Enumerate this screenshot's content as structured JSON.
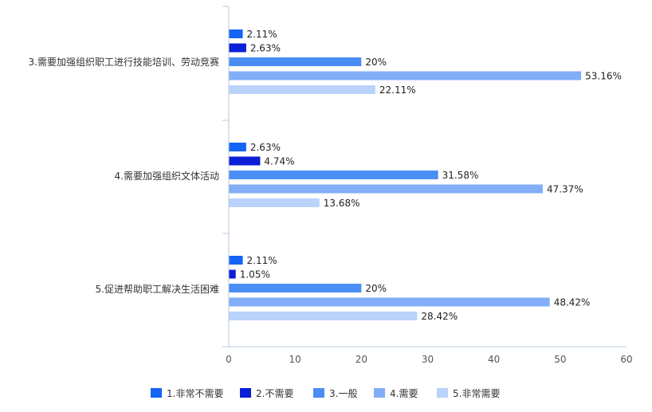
{
  "chart_data": {
    "type": "bar",
    "orientation": "horizontal",
    "title": "",
    "xlabel": "",
    "ylabel": "",
    "xlim": [
      0,
      60
    ],
    "xticks": [
      "0",
      "10",
      "20",
      "30",
      "40",
      "50",
      "60"
    ],
    "grid": false,
    "legend_position": "bottom",
    "categories": [
      "3.需要加强组织职工进行技能培训、劳动竞赛",
      "4.需要加强组织文体活动",
      "5.促进帮助职工解决生活困难"
    ],
    "series": [
      {
        "name": "1.非常不需要",
        "color": "#1464f6",
        "values": [
          2.11,
          2.63,
          2.11
        ],
        "labels": [
          "2.11%",
          "2.63%",
          "2.11%"
        ]
      },
      {
        "name": "2.不需要",
        "color": "#0a1fd6",
        "values": [
          2.63,
          4.74,
          1.05
        ],
        "labels": [
          "2.63%",
          "4.74%",
          "1.05%"
        ]
      },
      {
        "name": "3.一般",
        "color": "#4a8ef5",
        "values": [
          20,
          31.58,
          20
        ],
        "labels": [
          "20%",
          "31.58%",
          "20%"
        ]
      },
      {
        "name": "4.需要",
        "color": "#82aef7",
        "values": [
          53.16,
          47.37,
          48.42
        ],
        "labels": [
          "53.16%",
          "47.37%",
          "48.42%"
        ]
      },
      {
        "name": "5.非常需要",
        "color": "#bad3fb",
        "values": [
          22.11,
          13.68,
          28.42
        ],
        "labels": [
          "22.11%",
          "13.68%",
          "28.42%"
        ]
      }
    ]
  }
}
